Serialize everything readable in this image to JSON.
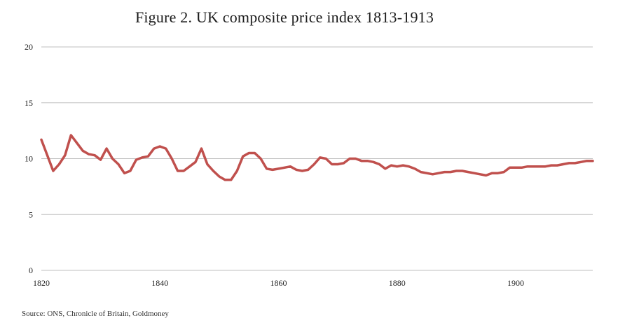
{
  "chart_data": {
    "type": "line",
    "title": "Figure 2. UK composite price index 1813-1913",
    "xlabel": "",
    "ylabel": "",
    "xlim": [
      1820,
      1913
    ],
    "ylim": [
      0,
      20
    ],
    "x_ticks": [
      "1820",
      "1840",
      "1860",
      "1880",
      "1900"
    ],
    "y_ticks": [
      "0",
      "5",
      "10",
      "15",
      "20"
    ],
    "grid": "horizontal",
    "line_color": "#c0504d",
    "series": [
      {
        "x": [
          1820,
          1821,
          1822,
          1823,
          1824,
          1825,
          1826,
          1827,
          1828,
          1829,
          1830,
          1831,
          1832,
          1833,
          1834,
          1835,
          1836,
          1837,
          1838,
          1839,
          1840,
          1841,
          1842,
          1843,
          1844,
          1845,
          1846,
          1847,
          1848,
          1849,
          1850,
          1851,
          1852,
          1853,
          1854,
          1855,
          1856,
          1857,
          1858,
          1859,
          1860,
          1861,
          1862,
          1863,
          1864,
          1865,
          1866,
          1867,
          1868,
          1869,
          1870,
          1871,
          1872,
          1873,
          1874,
          1875,
          1876,
          1877,
          1878,
          1879,
          1880,
          1881,
          1882,
          1883,
          1884,
          1885,
          1886,
          1887,
          1888,
          1889,
          1890,
          1891,
          1892,
          1893,
          1894,
          1895,
          1896,
          1897,
          1898,
          1899,
          1900,
          1901,
          1902,
          1903,
          1904,
          1905,
          1906,
          1907,
          1908,
          1909,
          1910,
          1911,
          1912,
          1913
        ],
        "values": [
          11.7,
          10.3,
          8.9,
          9.5,
          10.3,
          12.1,
          11.4,
          10.7,
          10.4,
          10.3,
          9.9,
          10.9,
          10.0,
          9.5,
          8.7,
          8.9,
          9.9,
          10.1,
          10.2,
          10.9,
          11.1,
          10.9,
          10.0,
          8.9,
          8.9,
          9.3,
          9.7,
          10.9,
          9.5,
          8.9,
          8.4,
          8.1,
          8.1,
          8.9,
          10.2,
          10.5,
          10.5,
          10.0,
          9.1,
          9.0,
          9.1,
          9.2,
          9.3,
          9.0,
          8.9,
          9.0,
          9.5,
          10.1,
          10.0,
          9.5,
          9.5,
          9.6,
          10.0,
          10.0,
          9.8,
          9.8,
          9.7,
          9.5,
          9.1,
          9.4,
          9.3,
          9.4,
          9.3,
          9.1,
          8.8,
          8.7,
          8.6,
          8.7,
          8.8,
          8.8,
          8.9,
          8.9,
          8.8,
          8.7,
          8.6,
          8.5,
          8.7,
          8.7,
          8.8,
          9.2,
          9.2,
          9.2,
          9.3,
          9.3,
          9.3,
          9.3,
          9.4,
          9.4,
          9.5,
          9.6,
          9.6,
          9.7,
          9.8,
          9.8
        ]
      }
    ]
  },
  "footer": {
    "source": "Source: ONS, Chronicle of Britain, Goldmoney"
  }
}
